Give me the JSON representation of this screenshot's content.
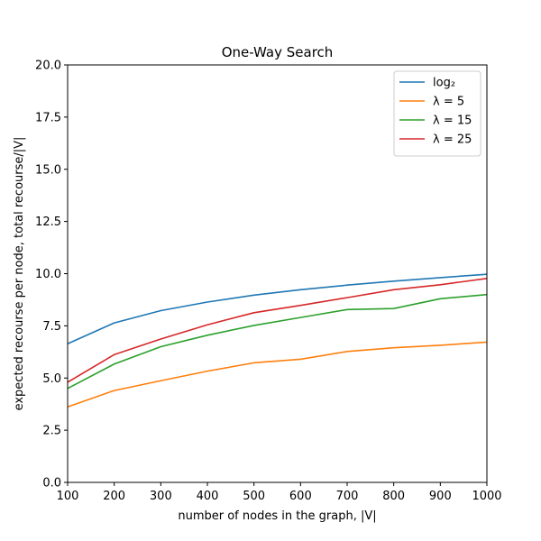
{
  "chart_data": {
    "type": "line",
    "title": "One-Way Search",
    "xlabel": "number of nodes in the graph, |V|",
    "ylabel": "expected recourse per node, total recourse/|V|",
    "x": [
      100,
      200,
      300,
      400,
      500,
      600,
      700,
      800,
      900,
      1000
    ],
    "xlim": [
      100,
      1000
    ],
    "ylim": [
      0,
      20
    ],
    "xticks": [
      "100",
      "200",
      "300",
      "400",
      "500",
      "600",
      "700",
      "800",
      "900",
      "1000"
    ],
    "yticks": [
      "0.0",
      "2.5",
      "5.0",
      "7.5",
      "10.0",
      "12.5",
      "15.0",
      "17.5",
      "20.0"
    ],
    "grid": false,
    "legend_position": "top-right",
    "series": [
      {
        "name": "log₂",
        "color": "#1f77b4",
        "values": [
          6.64,
          7.64,
          8.23,
          8.64,
          8.97,
          9.23,
          9.45,
          9.64,
          9.81,
          9.97
        ]
      },
      {
        "name": "λ = 5",
        "color": "#ff7f0e",
        "values": [
          3.62,
          4.4,
          4.87,
          5.33,
          5.73,
          5.9,
          6.27,
          6.45,
          6.57,
          6.72
        ]
      },
      {
        "name": "λ = 15",
        "color": "#2ca02c",
        "values": [
          4.5,
          5.67,
          6.5,
          7.05,
          7.52,
          7.9,
          8.28,
          8.33,
          8.8,
          9.0
        ]
      },
      {
        "name": "λ = 25",
        "color": "#d62728",
        "values": [
          4.8,
          6.12,
          6.87,
          7.55,
          8.13,
          8.48,
          8.85,
          9.23,
          9.47,
          9.77
        ]
      }
    ]
  }
}
